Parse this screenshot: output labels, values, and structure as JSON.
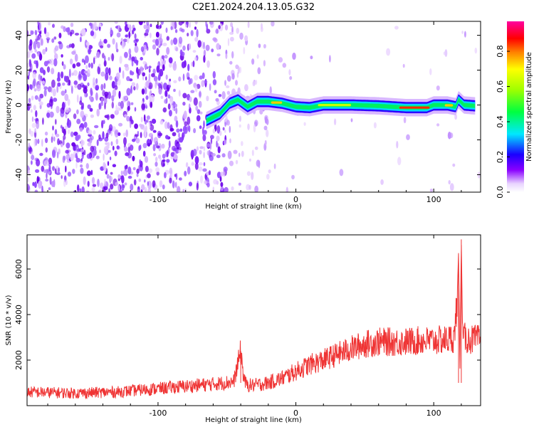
{
  "title": "C2E1.2024.204.13.05.G32",
  "chart_data": [
    {
      "type": "heatmap",
      "xlabel": "Height of straight line (km)",
      "ylabel": "Frequency (Hz)",
      "xlim": [
        -195,
        134
      ],
      "ylim": [
        -50,
        48
      ],
      "x_ticks": [
        -100,
        0,
        100
      ],
      "y_ticks": [
        -40,
        -20,
        0,
        20,
        40
      ],
      "grid": false,
      "ridge": {
        "x": [
          -65,
          -55,
          -48,
          -42,
          -35,
          -28,
          -20,
          -10,
          0,
          10,
          20,
          40,
          60,
          80,
          95,
          100,
          110,
          116,
          118,
          122,
          130
        ],
        "y": [
          -9,
          -5,
          1,
          3,
          -1,
          2,
          2,
          1,
          -1,
          -1.5,
          0,
          0,
          -0.5,
          -1.5,
          -1.5,
          0,
          0,
          -1,
          3,
          0,
          -0.5
        ]
      },
      "colorbar": {
        "label": "Normalized spectral amplitude",
        "ticks": [
          0.0,
          0.2,
          0.4,
          0.6,
          0.8
        ],
        "range": [
          0,
          0.97
        ]
      }
    },
    {
      "type": "line",
      "xlabel": "Height of straight line (km)",
      "ylabel": "SNR (10 * v/v)",
      "xlim": [
        -195,
        134
      ],
      "ylim": [
        0,
        7500
      ],
      "x_ticks": [
        -100,
        0,
        100
      ],
      "y_ticks": [
        2000,
        4000,
        6000
      ],
      "grid": false,
      "series": [
        {
          "color": "#ef3434",
          "x": [
            -195,
            -160,
            -130,
            -100,
            -80,
            -60,
            -45,
            -40,
            -38,
            -36,
            -30,
            -20,
            -10,
            0,
            10,
            20,
            30,
            40,
            50,
            60,
            70,
            80,
            90,
            100,
            110,
            115,
            117,
            118,
            119,
            120,
            121,
            122,
            125,
            134
          ],
          "y": [
            600,
            550,
            600,
            750,
            850,
            950,
            1050,
            2400,
            1300,
            900,
            900,
            1000,
            1200,
            1500,
            1800,
            2000,
            2250,
            2500,
            2700,
            2800,
            2800,
            2800,
            2850,
            2850,
            2900,
            3000,
            4800,
            6700,
            1500,
            7300,
            2900,
            3000,
            2900,
            2900
          ]
        }
      ]
    }
  ],
  "colors": {
    "heat_low": "#e4c8ff",
    "heat_mid": "#7a00f0",
    "heat_ridge": "#00e070",
    "line": "#ef3434"
  }
}
